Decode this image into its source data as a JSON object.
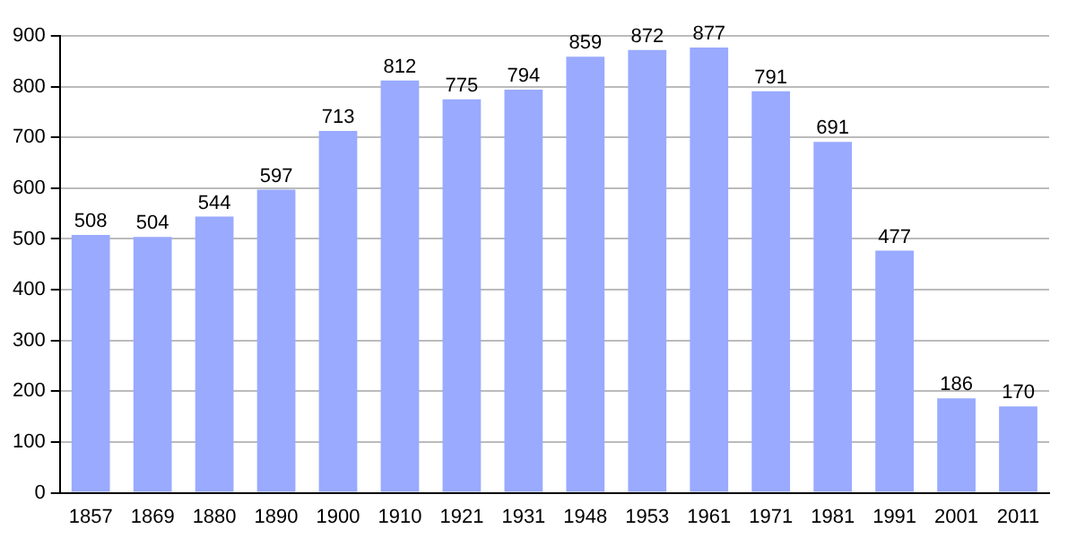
{
  "chart_data": {
    "type": "bar",
    "categories": [
      "1857",
      "1869",
      "1880",
      "1890",
      "1900",
      "1910",
      "1921",
      "1931",
      "1948",
      "1953",
      "1961",
      "1971",
      "1981",
      "1991",
      "2001",
      "2011"
    ],
    "values": [
      508,
      504,
      544,
      597,
      713,
      812,
      775,
      794,
      859,
      872,
      877,
      791,
      691,
      477,
      186,
      170
    ],
    "color": "#99aaff",
    "ylim": [
      0,
      900
    ],
    "yticks": [
      0,
      100,
      200,
      300,
      400,
      500,
      600,
      700,
      800,
      900
    ],
    "grid": "y",
    "data_labels": true
  }
}
